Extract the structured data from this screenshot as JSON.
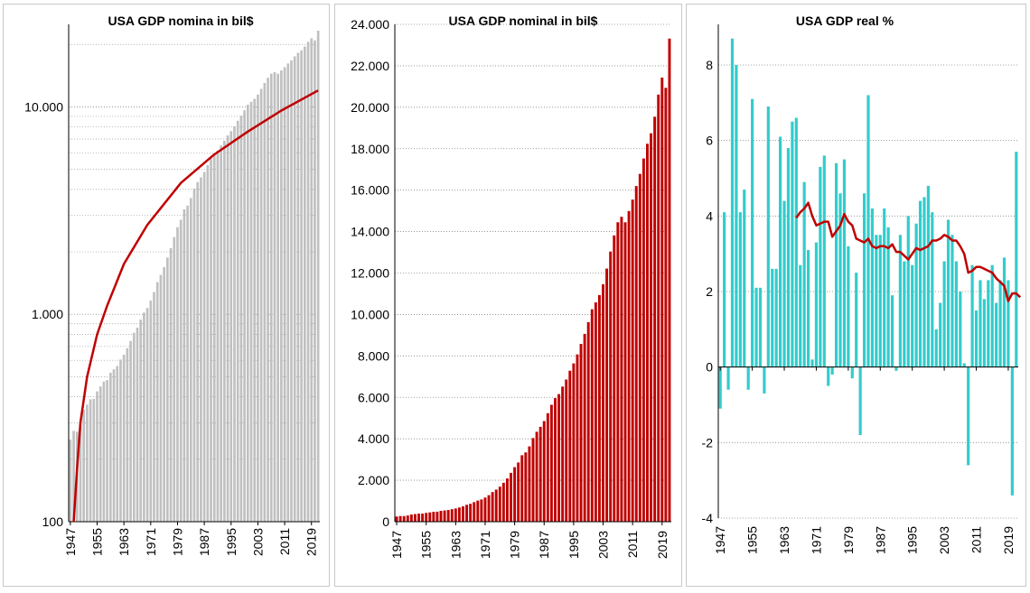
{
  "chart_data": [
    {
      "id": "nominal-log",
      "type": "bar",
      "title": "USA GDP nomina  in bil$",
      "y_scale": "log",
      "ylim": [
        100,
        25000
      ],
      "y_ticks": [
        100,
        1000,
        10000
      ],
      "y_tick_labels": [
        "100",
        "1.000",
        "10.000"
      ],
      "x_tick_labels": [
        "1947",
        "1955",
        "1963",
        "1971",
        "1979",
        "1987",
        "1995",
        "2003",
        "2011",
        "2019"
      ],
      "grid": "horizontal dotted",
      "bar_color": "#c0c0c0",
      "line_color": "#c00000",
      "years": [
        1947,
        1948,
        1949,
        1950,
        1951,
        1952,
        1953,
        1954,
        1955,
        1956,
        1957,
        1958,
        1959,
        1960,
        1961,
        1962,
        1963,
        1964,
        1965,
        1966,
        1967,
        1968,
        1969,
        1970,
        1971,
        1972,
        1973,
        1974,
        1975,
        1976,
        1977,
        1978,
        1979,
        1980,
        1981,
        1982,
        1983,
        1984,
        1985,
        1986,
        1987,
        1988,
        1989,
        1990,
        1991,
        1992,
        1993,
        1994,
        1995,
        1996,
        1997,
        1998,
        1999,
        2000,
        2001,
        2002,
        2003,
        2004,
        2005,
        2006,
        2007,
        2008,
        2009,
        2010,
        2011,
        2012,
        2013,
        2014,
        2015,
        2016,
        2017,
        2018,
        2019,
        2020,
        2021
      ],
      "values": [
        249,
        274,
        272,
        300,
        347,
        367,
        389,
        391,
        425,
        449,
        474,
        482,
        522,
        543,
        563,
        605,
        639,
        686,
        744,
        815,
        862,
        943,
        1019,
        1073,
        1165,
        1280,
        1429,
        1549,
        1689,
        1878,
        2086,
        2357,
        2632,
        2857,
        3207,
        3343,
        3634,
        4037,
        4339,
        4579,
        4855,
        5236,
        5642,
        5963,
        6158,
        6520,
        6859,
        7287,
        7640,
        8073,
        8578,
        9063,
        9631,
        10252,
        10582,
        10936,
        11458,
        12214,
        13037,
        13815,
        14452,
        14713,
        14449,
        14992,
        15543,
        16197,
        16785,
        17527,
        18238,
        18745,
        19543,
        20612,
        21433,
        20937,
        23315
      ],
      "trend_label": "",
      "trend": [
        [
          1948,
          100
        ],
        [
          1949,
          180
        ],
        [
          1950,
          300
        ],
        [
          1952,
          500
        ],
        [
          1955,
          800
        ],
        [
          1958,
          1100
        ],
        [
          1963,
          1750
        ],
        [
          1970,
          2700
        ],
        [
          1980,
          4300
        ],
        [
          1990,
          5900
        ],
        [
          2000,
          7600
        ],
        [
          2010,
          9600
        ],
        [
          2021,
          12000
        ]
      ]
    },
    {
      "id": "nominal-linear",
      "type": "bar",
      "title": "USA GDP nominal in bil$",
      "ylim": [
        0,
        24000
      ],
      "y_ticks": [
        0,
        2000,
        4000,
        6000,
        8000,
        10000,
        12000,
        14000,
        16000,
        18000,
        20000,
        22000,
        24000
      ],
      "y_tick_labels": [
        "0",
        "2.000",
        "4.000",
        "6.000",
        "8.000",
        "10.000",
        "12.000",
        "14.000",
        "16.000",
        "18.000",
        "20.000",
        "22.000",
        "24.000"
      ],
      "x_tick_labels": [
        "1947",
        "1955",
        "1963",
        "1971",
        "1979",
        "1987",
        "1995",
        "2003",
        "2011",
        "2019"
      ],
      "grid": "horizontal dotted",
      "bar_color": "#c00000",
      "years_ref": "same as nominal-log"
    },
    {
      "id": "real-pct",
      "type": "bar",
      "title": "USA GDP real %",
      "ylim": [
        -4,
        9
      ],
      "y_ticks": [
        -4,
        -2,
        0,
        2,
        4,
        6,
        8
      ],
      "y_tick_labels": [
        "-4",
        "-2",
        "0",
        "2",
        "4",
        "6",
        "8"
      ],
      "x_tick_labels": [
        "1947",
        "1955",
        "1963",
        "1971",
        "1979",
        "1987",
        "1995",
        "2003",
        "2011",
        "2019"
      ],
      "grid": "horizontal dotted",
      "bar_color": "#33cccc",
      "line_color": "#c00000",
      "years": [
        1947,
        1948,
        1949,
        1950,
        1951,
        1952,
        1953,
        1954,
        1955,
        1956,
        1957,
        1958,
        1959,
        1960,
        1961,
        1962,
        1963,
        1964,
        1965,
        1966,
        1967,
        1968,
        1969,
        1970,
        1971,
        1972,
        1973,
        1974,
        1975,
        1976,
        1977,
        1978,
        1979,
        1980,
        1981,
        1982,
        1983,
        1984,
        1985,
        1986,
        1987,
        1988,
        1989,
        1990,
        1991,
        1992,
        1993,
        1994,
        1995,
        1996,
        1997,
        1998,
        1999,
        2000,
        2001,
        2002,
        2003,
        2004,
        2005,
        2006,
        2007,
        2008,
        2009,
        2010,
        2011,
        2012,
        2013,
        2014,
        2015,
        2016,
        2017,
        2018,
        2019,
        2020,
        2021
      ],
      "values": [
        -1.1,
        4.1,
        -0.6,
        8.7,
        8.0,
        4.1,
        4.7,
        -0.6,
        7.1,
        2.1,
        2.1,
        -0.7,
        6.9,
        2.6,
        2.6,
        6.1,
        4.4,
        5.8,
        6.5,
        6.6,
        2.7,
        4.9,
        3.1,
        0.2,
        3.3,
        5.3,
        5.6,
        -0.5,
        -0.2,
        5.4,
        4.6,
        5.5,
        3.2,
        -0.3,
        2.5,
        -1.8,
        4.6,
        7.2,
        4.2,
        3.5,
        3.5,
        4.2,
        3.7,
        1.9,
        -0.1,
        3.5,
        2.8,
        4.0,
        2.7,
        3.8,
        4.4,
        4.5,
        4.8,
        4.1,
        1.0,
        1.7,
        2.8,
        3.9,
        3.5,
        2.8,
        2.0,
        0.1,
        -2.6,
        2.7,
        1.5,
        2.3,
        1.8,
        2.3,
        2.7,
        1.7,
        2.3,
        2.9,
        2.3,
        -3.4,
        5.7
      ],
      "trend_label": "",
      "trend": [
        [
          1966,
          3.95
        ],
        [
          1967,
          4.1
        ],
        [
          1968,
          4.2
        ],
        [
          1969,
          4.35
        ],
        [
          1970,
          4.0
        ],
        [
          1971,
          3.75
        ],
        [
          1972,
          3.8
        ],
        [
          1973,
          3.85
        ],
        [
          1974,
          3.85
        ],
        [
          1975,
          3.45
        ],
        [
          1976,
          3.6
        ],
        [
          1977,
          3.75
        ],
        [
          1978,
          4.05
        ],
        [
          1979,
          3.85
        ],
        [
          1980,
          3.75
        ],
        [
          1981,
          3.4
        ],
        [
          1982,
          3.35
        ],
        [
          1983,
          3.3
        ],
        [
          1984,
          3.4
        ],
        [
          1985,
          3.2
        ],
        [
          1986,
          3.15
        ],
        [
          1987,
          3.2
        ],
        [
          1988,
          3.2
        ],
        [
          1989,
          3.15
        ],
        [
          1990,
          3.25
        ],
        [
          1991,
          3.05
        ],
        [
          1992,
          3.05
        ],
        [
          1993,
          2.95
        ],
        [
          1994,
          2.85
        ],
        [
          1995,
          3.0
        ],
        [
          1996,
          3.15
        ],
        [
          1997,
          3.1
        ],
        [
          1998,
          3.15
        ],
        [
          1999,
          3.2
        ],
        [
          2000,
          3.35
        ],
        [
          2001,
          3.35
        ],
        [
          2002,
          3.4
        ],
        [
          2003,
          3.5
        ],
        [
          2004,
          3.45
        ],
        [
          2005,
          3.35
        ],
        [
          2006,
          3.35
        ],
        [
          2007,
          3.2
        ],
        [
          2008,
          3.0
        ],
        [
          2009,
          2.5
        ],
        [
          2010,
          2.55
        ],
        [
          2011,
          2.65
        ],
        [
          2012,
          2.65
        ],
        [
          2013,
          2.6
        ],
        [
          2014,
          2.55
        ],
        [
          2015,
          2.5
        ],
        [
          2016,
          2.35
        ],
        [
          2017,
          2.25
        ],
        [
          2018,
          2.15
        ],
        [
          2019,
          1.75
        ],
        [
          2020,
          1.95
        ],
        [
          2021,
          1.95
        ],
        [
          2022,
          1.85
        ]
      ]
    }
  ]
}
